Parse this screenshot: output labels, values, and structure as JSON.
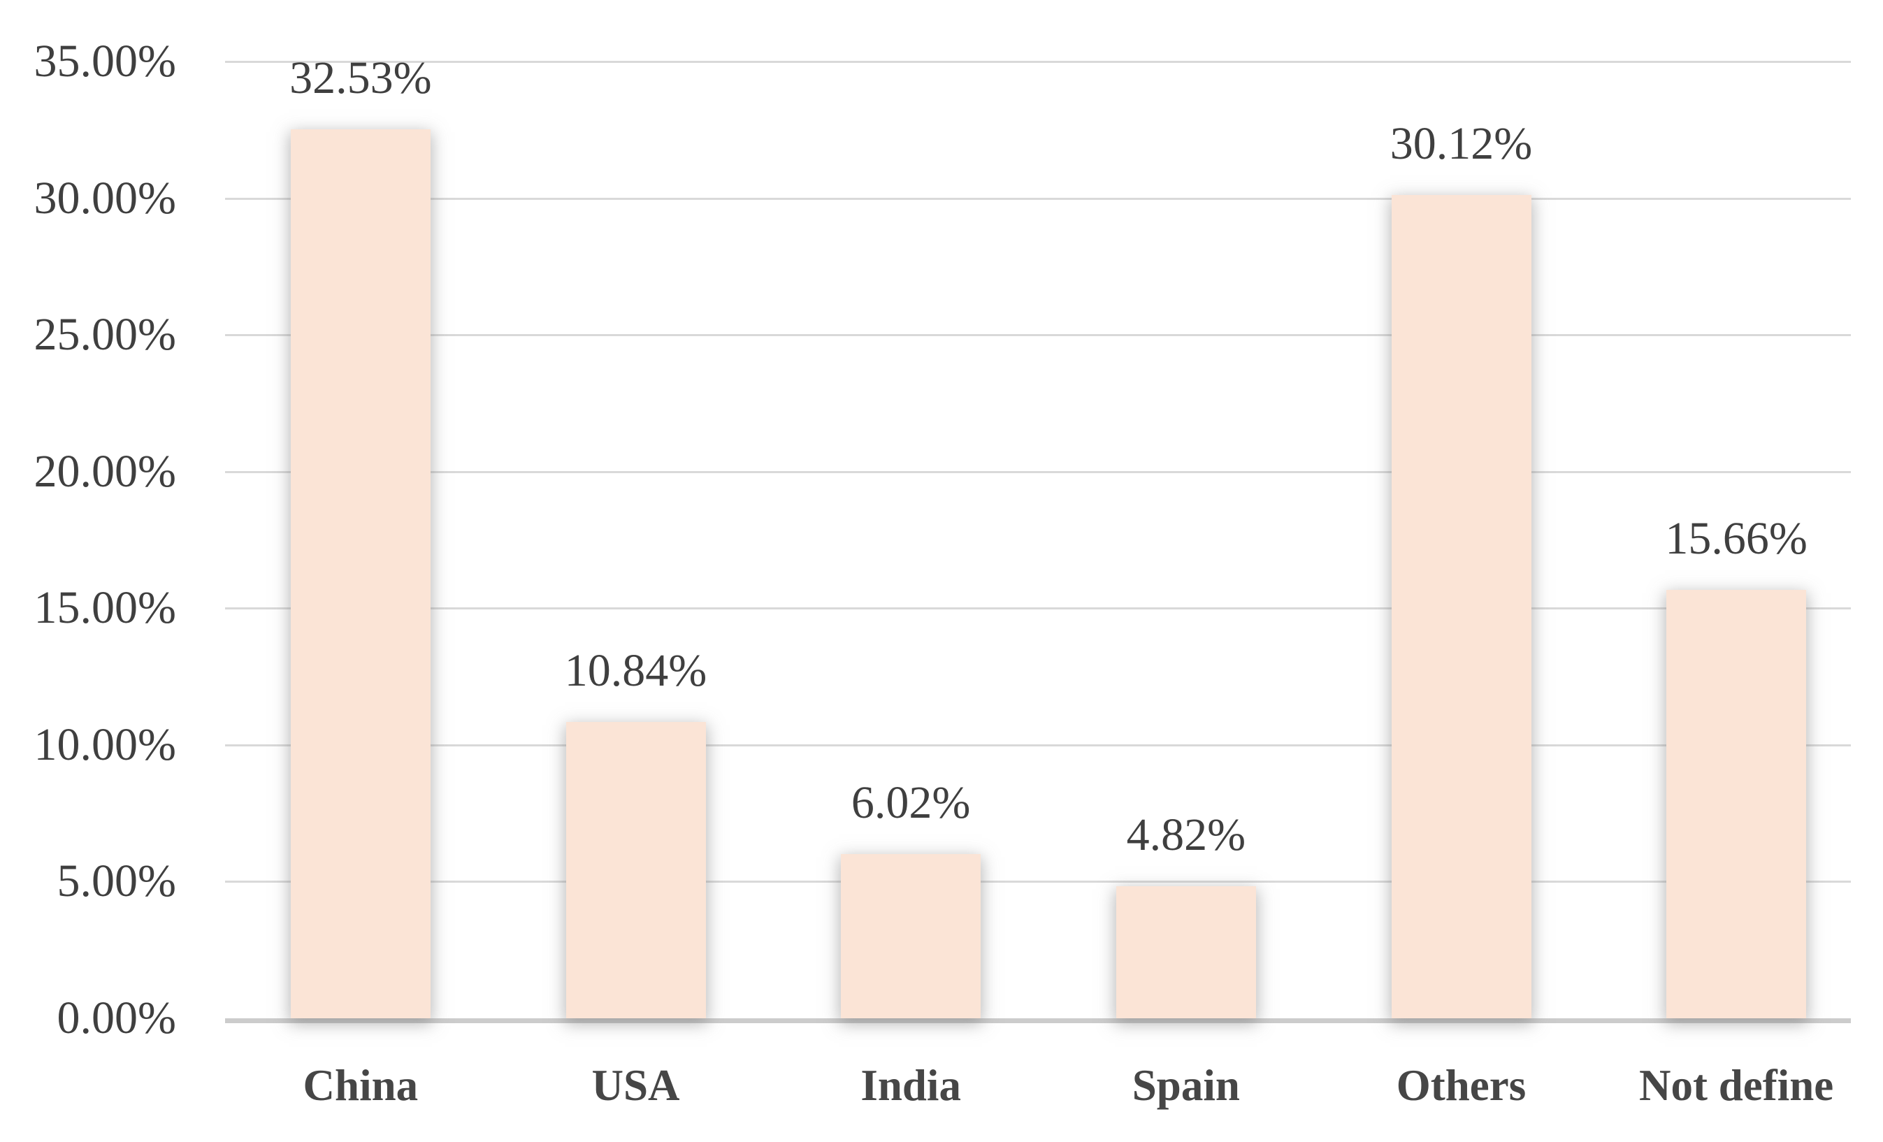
{
  "chart_data": {
    "type": "bar",
    "title": "",
    "xlabel": "",
    "ylabel": "",
    "categories": [
      "China",
      "USA",
      "India",
      "Spain",
      "Others",
      "Not define"
    ],
    "values": [
      32.53,
      10.84,
      6.02,
      4.82,
      30.12,
      15.66
    ],
    "bar_labels": [
      "32.53%",
      "10.84%",
      "6.02%",
      "4.82%",
      "30.12%",
      "15.66%"
    ],
    "yticks": [
      {
        "label": "0.00%",
        "value": 0
      },
      {
        "label": "5.00%",
        "value": 5
      },
      {
        "label": "10.00%",
        "value": 10
      },
      {
        "label": "15.00%",
        "value": 15
      },
      {
        "label": "20.00%",
        "value": 20
      },
      {
        "label": "25.00%",
        "value": 25
      },
      {
        "label": "30.00%",
        "value": 30
      },
      {
        "label": "35.00%",
        "value": 35
      }
    ],
    "ylim": [
      0,
      35
    ],
    "grid": true,
    "legend": false,
    "colors": {
      "bar_fill": "#FBE4D6",
      "gridline": "#D9D9D9",
      "axis_line": "#CCCCCC",
      "tick_text": "#3F3F3F",
      "value_text": "#3F3F3F",
      "category_text": "#464646",
      "background": "#FFFFFF"
    }
  }
}
